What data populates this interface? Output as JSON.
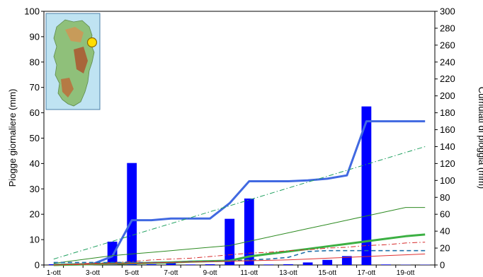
{
  "chart_data": {
    "type": "bar",
    "title": "",
    "xlabel": "",
    "ylabel": "Piogge giornaliere (mm)",
    "y2label": "Cumulati di pioggia (mm)",
    "grid": false,
    "legend": false,
    "categories": [
      "1-ott",
      "2-ott",
      "3-ott",
      "4-ott",
      "5-ott",
      "6-ott",
      "7-ott",
      "8-ott",
      "9-ott",
      "10-ott",
      "11-ott",
      "12-ott",
      "13-ott",
      "14-ott",
      "15-ott",
      "16-ott",
      "17-ott",
      "18-ott",
      "19-ott",
      "20-ott"
    ],
    "x_tick_labels": [
      "1-ott",
      "3-ott",
      "5-ott",
      "7-ott",
      "9-ott",
      "11-ott",
      "13-ott",
      "15-ott",
      "17-ott",
      "19-ott"
    ],
    "ylim": [
      0,
      100
    ],
    "y_ticks": [
      0,
      10,
      20,
      30,
      40,
      50,
      60,
      70,
      80,
      90,
      100
    ],
    "y2lim": [
      0,
      300
    ],
    "y2_ticks": [
      0,
      20,
      40,
      60,
      80,
      100,
      120,
      140,
      160,
      180,
      200,
      220,
      240,
      260,
      280,
      300
    ],
    "bar_color": "#0000ff",
    "inset_map": "Sardinia relief map with yellow station marker",
    "bars": {
      "axis": "left",
      "values": [
        0.3,
        0.3,
        0.5,
        9.2,
        40.2,
        0.3,
        0.8,
        0.2,
        0.3,
        18.2,
        26.2,
        0.2,
        0.3,
        1.0,
        2.0,
        3.5,
        62.5,
        0.2,
        0.1,
        0.1
      ]
    },
    "series": [
      {
        "axis": "right",
        "color": "#4169e1",
        "style": "solid-thick",
        "values": [
          0.3,
          0.6,
          1.1,
          10.3,
          53,
          53,
          55,
          55,
          55,
          73,
          99,
          99,
          99,
          100,
          102,
          106,
          170,
          170,
          170,
          170
        ]
      },
      {
        "axis": "right",
        "color": "#20a060",
        "style": "dash-dot",
        "values": [
          7,
          14,
          21,
          28,
          35,
          42,
          49,
          56,
          63,
          70,
          77,
          84,
          91,
          98,
          105,
          112,
          119,
          126,
          133,
          140
        ]
      },
      {
        "axis": "right",
        "color": "#2e8b22",
        "style": "solid-thin",
        "values": [
          2,
          5,
          8,
          11,
          13,
          15,
          17,
          19,
          21,
          23,
          28,
          33,
          38,
          43,
          48,
          53,
          58,
          63,
          68,
          68
        ]
      },
      {
        "axis": "right",
        "color": "#3cb043",
        "style": "solid-thick",
        "values": [
          0,
          0.5,
          1,
          1.5,
          2,
          2.5,
          3,
          4,
          4.5,
          5,
          10,
          13,
          16,
          19,
          22,
          25,
          28,
          31,
          34,
          36
        ]
      },
      {
        "axis": "right",
        "color": "#d62a2a",
        "style": "dash-dot",
        "values": [
          0,
          1,
          2,
          3,
          4,
          6,
          7,
          8,
          10,
          12,
          14,
          15,
          17,
          18,
          20,
          21,
          23,
          24,
          26,
          27
        ]
      },
      {
        "axis": "right",
        "color": "#2070a8",
        "style": "dashed",
        "values": [
          3,
          3,
          3,
          3,
          3,
          3,
          3,
          4,
          4,
          5,
          6,
          7,
          9,
          16,
          17,
          17,
          17,
          17,
          17,
          17
        ]
      },
      {
        "axis": "right",
        "color": "#e03030",
        "style": "solid-thin",
        "values": [
          0,
          0.5,
          1,
          1.5,
          2,
          2.5,
          3,
          3.5,
          4,
          4.5,
          5,
          5.5,
          6,
          7,
          8,
          9,
          10,
          11,
          12,
          13
        ]
      }
    ]
  }
}
